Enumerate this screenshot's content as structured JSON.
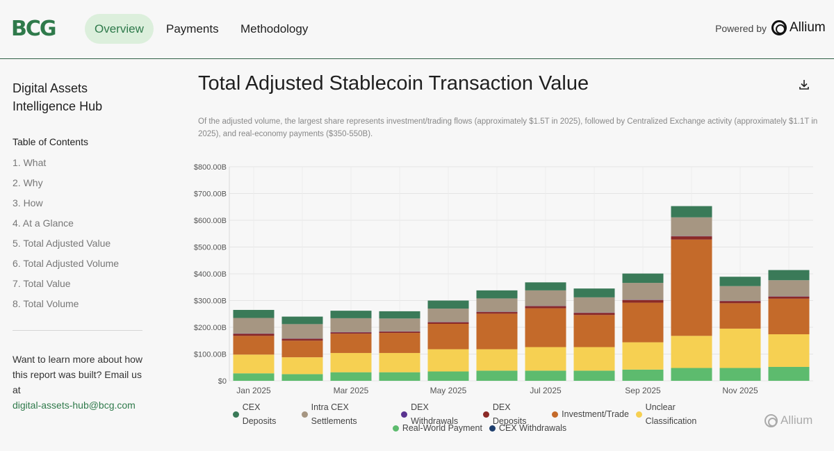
{
  "header": {
    "logo": "BCG",
    "tabs": [
      {
        "label": "Overview",
        "active": true
      },
      {
        "label": "Payments",
        "active": false
      },
      {
        "label": "Methodology",
        "active": false
      }
    ],
    "powered_by": "Powered by",
    "partner": "Allium"
  },
  "sidebar": {
    "hub_title_line1": "Digital Assets",
    "hub_title_line2": "Intelligence Hub",
    "toc_title": "Table of Contents",
    "toc_items": [
      "1. What",
      "2. Why",
      "3. How",
      "4. At a Glance",
      "5. Total Adjusted Value",
      "6. Total Adjusted Volume",
      "7. Total Value",
      "8. Total Volume"
    ],
    "learn_text": "Want to learn more about how this report was built? Email us at",
    "email": "digital-assets-hub@bcg.com"
  },
  "main": {
    "title": "Total Adjusted Stablecoin Transaction Value",
    "subtitle": "Of the adjusted volume, the largest share represents investment/trading flows (approximately $1.5T in 2025), followed by Centralized Exchange activity (approximately $1.1T in 2025), and real-economy payments ($350-550B).",
    "watermark": "Allium"
  },
  "chart_data": {
    "type": "bar",
    "stacked": true,
    "categories": [
      "Jan 2025",
      "Feb 2025",
      "Mar 2025",
      "Apr 2025",
      "May 2025",
      "Jun 2025",
      "Jul 2025",
      "Aug 2025",
      "Sep 2025",
      "Oct 2025",
      "Nov 2025",
      "Dec 2025"
    ],
    "x_tick_labels": [
      "Jan 2025",
      "",
      "Mar 2025",
      "",
      "May 2025",
      "",
      "Jul 2025",
      "",
      "Sep 2025",
      "",
      "Nov 2025",
      ""
    ],
    "ylim": [
      0,
      800
    ],
    "y_ticks": [
      0,
      100,
      200,
      300,
      400,
      500,
      600,
      700,
      800
    ],
    "y_tick_labels": [
      "$0",
      "$100.00B",
      "$200.00B",
      "$300.00B",
      "$400.00B",
      "$500.00B",
      "$600.00B",
      "$700.00B",
      "$800.00B"
    ],
    "series": [
      {
        "name": "Real-World Payment",
        "color": "#5dbb6e",
        "values": [
          28,
          25,
          32,
          32,
          35,
          38,
          38,
          38,
          42,
          48,
          48,
          52
        ]
      },
      {
        "name": "Unclear Classification",
        "color": "#f6d052",
        "values": [
          70,
          63,
          72,
          72,
          83,
          80,
          88,
          88,
          102,
          120,
          147,
          122
        ]
      },
      {
        "name": "Investment/Trade",
        "color": "#c46a2a",
        "values": [
          70,
          62,
          72,
          75,
          95,
          133,
          145,
          120,
          148,
          360,
          95,
          133
        ]
      },
      {
        "name": "DEX Deposits",
        "color": "#8b2a26",
        "values": [
          8,
          7,
          5,
          5,
          6,
          6,
          8,
          8,
          10,
          12,
          8,
          8
        ]
      },
      {
        "name": "DEX Withdrawals",
        "color": "#5a3490",
        "values": [
          1,
          1,
          1,
          1,
          1,
          1,
          1,
          1,
          1,
          1,
          1,
          1
        ]
      },
      {
        "name": "Intra CEX Settlements",
        "color": "#a69682",
        "values": [
          58,
          54,
          52,
          48,
          50,
          50,
          58,
          57,
          63,
          70,
          55,
          60
        ]
      },
      {
        "name": "CEX Deposits",
        "color": "#3a7a58",
        "values": [
          30,
          28,
          28,
          27,
          30,
          30,
          30,
          33,
          35,
          42,
          35,
          38
        ]
      },
      {
        "name": "CEX Withdrawals",
        "color": "#1f3f6e",
        "values": [
          0,
          0,
          0,
          0,
          0,
          0,
          0,
          0,
          0,
          0,
          0,
          0
        ]
      }
    ],
    "legend": [
      {
        "name": "CEX Deposits",
        "color": "#3a7a58"
      },
      {
        "name": "Intra CEX Settlements",
        "color": "#a69682"
      },
      {
        "name": "DEX Withdrawals",
        "color": "#5a3490"
      },
      {
        "name": "DEX Deposits",
        "color": "#8b2a26"
      },
      {
        "name": "Investment/Trade",
        "color": "#c46a2a"
      },
      {
        "name": "Unclear Classification",
        "color": "#f6d052"
      },
      {
        "name": "Real-World Payment",
        "color": "#5dbb6e"
      },
      {
        "name": "CEX Withdrawals",
        "color": "#1f3f6e"
      }
    ],
    "grid": true,
    "legend_position": "bottom"
  }
}
